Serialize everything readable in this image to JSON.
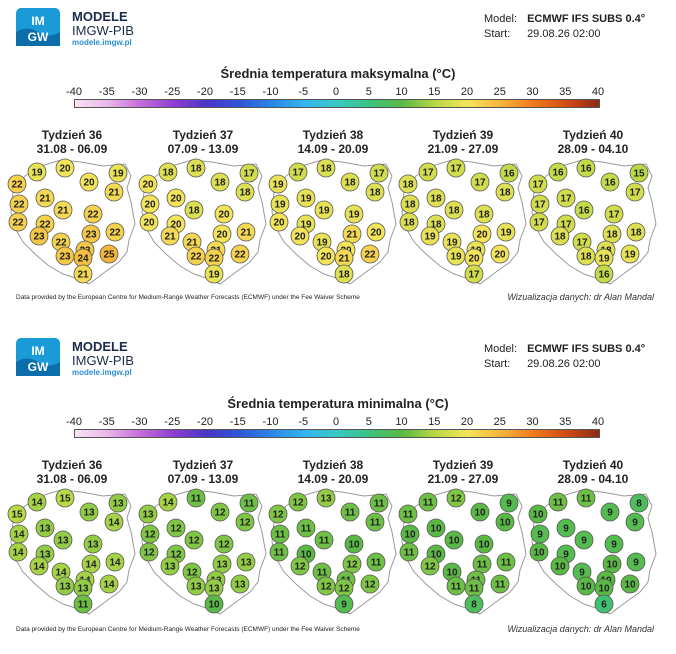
{
  "logo": {
    "line1": "MODELE",
    "line2": "IMGW-PIB",
    "line3": "modele.imgw.pl",
    "mark_top": "IM",
    "mark_bottom": "GW"
  },
  "model": {
    "model_label": "Model:",
    "model_value": "ECMWF IFS SUBS 0.4°",
    "start_label": "Start:",
    "start_value": "29.08.26 02:00"
  },
  "colorbar_ticks": [
    "-40",
    "-35",
    "-30",
    "-25",
    "-20",
    "-15",
    "-10",
    "-5",
    "0",
    "5",
    "10",
    "15",
    "20",
    "25",
    "30",
    "35",
    "40"
  ],
  "weeks": [
    {
      "label": "Tydzień 36",
      "dates": "31.08 - 06.09"
    },
    {
      "label": "Tydzień 37",
      "dates": "07.09 - 13.09"
    },
    {
      "label": "Tydzień 38",
      "dates": "14.09 - 20.09"
    },
    {
      "label": "Tydzień 39",
      "dates": "21.09 - 27.09"
    },
    {
      "label": "Tydzień 40",
      "dates": "28.09 - 04.10"
    }
  ],
  "credit": "Data provided by the European Centre for Medium-Range Weather Forecasts (ECMWF) under the Fee Waiver Scheme",
  "author": "Wizualizacja danych: dr Alan Mandal",
  "chart_data": [
    {
      "type": "map",
      "title": "Średnia temperatura maksymalna (°C)",
      "colorbar_range": [
        -40,
        40
      ],
      "weeks": [
        [
          19,
          20,
          19,
          22,
          20,
          21,
          22,
          21,
          21,
          22,
          22,
          22,
          22,
          23,
          22,
          23,
          23,
          23,
          24,
          25,
          21
        ],
        [
          18,
          18,
          17,
          20,
          18,
          18,
          20,
          20,
          18,
          20,
          20,
          20,
          21,
          21,
          21,
          20,
          21,
          22,
          22,
          22,
          19
        ],
        [
          17,
          18,
          17,
          19,
          18,
          18,
          19,
          19,
          19,
          20,
          19,
          19,
          20,
          20,
          19,
          21,
          20,
          20,
          21,
          22,
          18
        ],
        [
          17,
          17,
          16,
          18,
          17,
          18,
          18,
          18,
          18,
          18,
          18,
          18,
          19,
          19,
          19,
          20,
          19,
          19,
          20,
          20,
          17
        ],
        [
          16,
          16,
          15,
          17,
          16,
          17,
          17,
          17,
          16,
          17,
          17,
          17,
          18,
          18,
          17,
          18,
          18,
          18,
          19,
          19,
          16
        ]
      ]
    },
    {
      "type": "map",
      "title": "Średnia temperatura minimalna (°C)",
      "colorbar_range": [
        -40,
        40
      ],
      "weeks": [
        [
          14,
          15,
          13,
          15,
          13,
          14,
          14,
          13,
          13,
          14,
          13,
          13,
          14,
          14,
          14,
          14,
          14,
          13,
          13,
          14,
          11
        ],
        [
          14,
          11,
          11,
          13,
          12,
          12,
          12,
          12,
          12,
          12,
          12,
          12,
          13,
          13,
          12,
          13,
          13,
          13,
          13,
          13,
          10
        ],
        [
          12,
          13,
          11,
          12,
          11,
          11,
          11,
          11,
          11,
          11,
          10,
          10,
          11,
          12,
          11,
          12,
          11,
          12,
          12,
          12,
          9
        ],
        [
          11,
          12,
          9,
          11,
          10,
          10,
          10,
          10,
          10,
          11,
          10,
          10,
          11,
          12,
          10,
          11,
          11,
          11,
          11,
          11,
          8
        ],
        [
          11,
          11,
          8,
          10,
          9,
          9,
          9,
          9,
          9,
          10,
          9,
          9,
          9,
          10,
          9,
          10,
          10,
          10,
          10,
          10,
          6
        ]
      ]
    }
  ]
}
